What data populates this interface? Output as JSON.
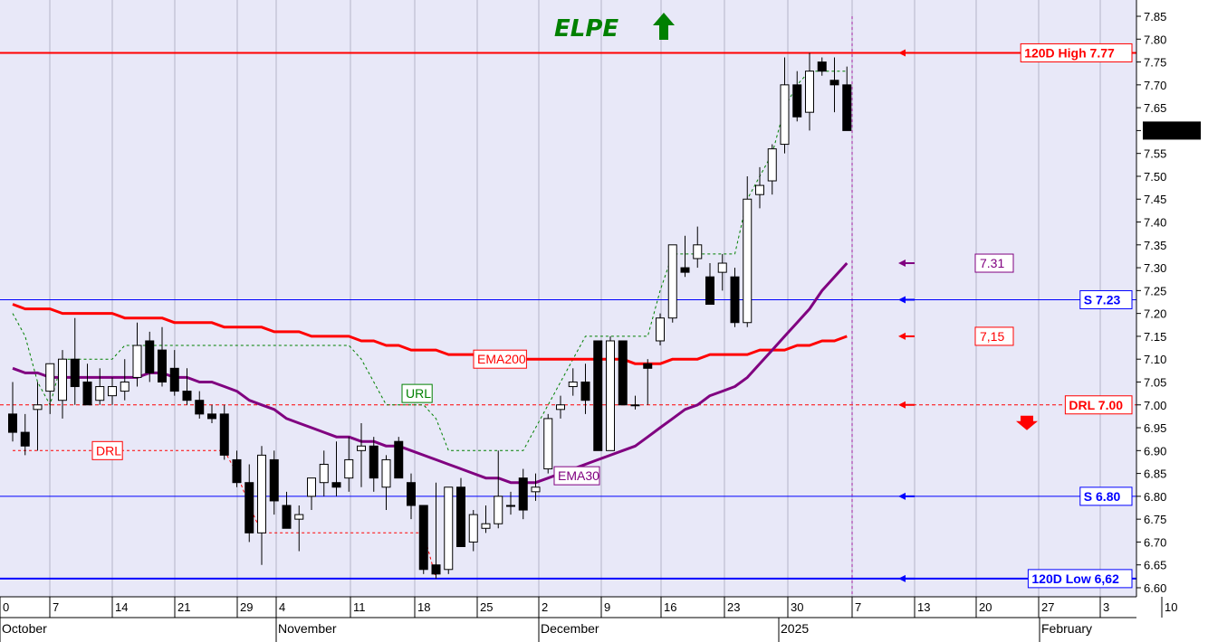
{
  "chart_data": {
    "type": "candlestick",
    "title": "ELPE",
    "trend_arrow": "up",
    "y_axis": {
      "min": 6.6,
      "max": 7.85,
      "ticks": [
        "7.85",
        "7.80",
        "7.75",
        "7.70",
        "7.65",
        "7.60",
        "7.55",
        "7.50",
        "7.45",
        "7.40",
        "7.35",
        "7.30",
        "7.25",
        "7.20",
        "7.15",
        "7.10",
        "7.05",
        "7.00",
        "6.95",
        "6.90",
        "6.85",
        "6.80",
        "6.75",
        "6.70",
        "6.65",
        "6.60"
      ]
    },
    "x_axis": {
      "day_ticks": [
        "0",
        "7",
        "14",
        "21",
        "29",
        "4",
        "11",
        "18",
        "25",
        "2",
        "9",
        "16",
        "23",
        "30",
        "7",
        "13",
        "20",
        "27",
        "3",
        "10"
      ],
      "months": [
        "October",
        "November",
        "December",
        "2025",
        "February"
      ]
    },
    "last_price": "7.60000",
    "levels": [
      {
        "name": "120d-high",
        "label": "120D High 7.77",
        "value": 7.77,
        "color": "#ff0000"
      },
      {
        "name": "support-7-23",
        "label": "S 7.23",
        "value": 7.23,
        "color": "#0000ff"
      },
      {
        "name": "drl",
        "label": "DRL 7.00",
        "value": 7.0,
        "color": "#ff0000"
      },
      {
        "name": "support-6-80",
        "label": "S 6.80",
        "value": 6.8,
        "color": "#0000ff"
      },
      {
        "name": "120d-low",
        "label": "120D Low 6,62",
        "value": 6.62,
        "color": "#0000ff"
      }
    ],
    "annotations": [
      {
        "name": "ema30-projection",
        "label": "7.31",
        "value": 7.31,
        "color": "#800080"
      },
      {
        "name": "ema200-projection",
        "label": "7,15",
        "value": 7.15,
        "color": "#ff0000"
      }
    ],
    "indicator_labels": {
      "ema200": "EMA200",
      "ema30": "EMA30",
      "url": "URL",
      "drl": "DRL"
    },
    "colors": {
      "background": "#e8e8f8",
      "ema200": "#ff0000",
      "ema30": "#800080",
      "url": "#008000",
      "drl": "#ff0000",
      "support": "#0000ff"
    },
    "candles": [
      {
        "o": 6.98,
        "h": 7.05,
        "l": 6.92,
        "c": 6.94
      },
      {
        "o": 6.94,
        "h": 6.98,
        "l": 6.89,
        "c": 6.91
      },
      {
        "o": 6.99,
        "h": 7.05,
        "l": 6.9,
        "c": 7.0
      },
      {
        "o": 7.03,
        "h": 7.09,
        "l": 6.98,
        "c": 7.09
      },
      {
        "o": 7.01,
        "h": 7.12,
        "l": 6.97,
        "c": 7.1
      },
      {
        "o": 7.1,
        "h": 7.19,
        "l": 7.0,
        "c": 7.04
      },
      {
        "o": 7.05,
        "h": 7.09,
        "l": 7.0,
        "c": 7.0
      },
      {
        "o": 7.01,
        "h": 7.08,
        "l": 7.0,
        "c": 7.04
      },
      {
        "o": 7.02,
        "h": 7.06,
        "l": 7.0,
        "c": 7.04
      },
      {
        "o": 7.03,
        "h": 7.1,
        "l": 7.01,
        "c": 7.05
      },
      {
        "o": 7.06,
        "h": 7.18,
        "l": 7.04,
        "c": 7.13
      },
      {
        "o": 7.14,
        "h": 7.16,
        "l": 7.05,
        "c": 7.07
      },
      {
        "o": 7.12,
        "h": 7.17,
        "l": 7.04,
        "c": 7.05
      },
      {
        "o": 7.08,
        "h": 7.12,
        "l": 7.02,
        "c": 7.03
      },
      {
        "o": 7.03,
        "h": 7.08,
        "l": 7.0,
        "c": 7.01
      },
      {
        "o": 7.01,
        "h": 7.03,
        "l": 6.97,
        "c": 6.98
      },
      {
        "o": 6.98,
        "h": 7.0,
        "l": 6.96,
        "c": 6.97
      },
      {
        "o": 6.98,
        "h": 7.0,
        "l": 6.88,
        "c": 6.89
      },
      {
        "o": 6.88,
        "h": 6.9,
        "l": 6.82,
        "c": 6.83
      },
      {
        "o": 6.83,
        "h": 6.87,
        "l": 6.7,
        "c": 6.72
      },
      {
        "o": 6.72,
        "h": 6.91,
        "l": 6.65,
        "c": 6.89
      },
      {
        "o": 6.88,
        "h": 6.9,
        "l": 6.76,
        "c": 6.79
      },
      {
        "o": 6.78,
        "h": 6.81,
        "l": 6.73,
        "c": 6.73
      },
      {
        "o": 6.75,
        "h": 6.78,
        "l": 6.68,
        "c": 6.76
      },
      {
        "o": 6.8,
        "h": 6.84,
        "l": 6.77,
        "c": 6.84
      },
      {
        "o": 6.83,
        "h": 6.9,
        "l": 6.8,
        "c": 6.87
      },
      {
        "o": 6.83,
        "h": 6.92,
        "l": 6.8,
        "c": 6.82
      },
      {
        "o": 6.84,
        "h": 6.93,
        "l": 6.81,
        "c": 6.88
      },
      {
        "o": 6.9,
        "h": 6.96,
        "l": 6.82,
        "c": 6.91
      },
      {
        "o": 6.91,
        "h": 6.93,
        "l": 6.81,
        "c": 6.84
      },
      {
        "o": 6.82,
        "h": 6.89,
        "l": 6.77,
        "c": 6.88
      },
      {
        "o": 6.92,
        "h": 6.93,
        "l": 6.84,
        "c": 6.84
      },
      {
        "o": 6.83,
        "h": 6.85,
        "l": 6.75,
        "c": 6.78
      },
      {
        "o": 6.78,
        "h": 6.78,
        "l": 6.63,
        "c": 6.64
      },
      {
        "o": 6.65,
        "h": 6.83,
        "l": 6.62,
        "c": 6.63
      },
      {
        "o": 6.64,
        "h": 6.82,
        "l": 6.63,
        "c": 6.82
      },
      {
        "o": 6.82,
        "h": 6.84,
        "l": 6.69,
        "c": 6.69
      },
      {
        "o": 6.7,
        "h": 6.77,
        "l": 6.68,
        "c": 6.76
      },
      {
        "o": 6.73,
        "h": 6.78,
        "l": 6.72,
        "c": 6.74
      },
      {
        "o": 6.74,
        "h": 6.9,
        "l": 6.73,
        "c": 6.8
      },
      {
        "o": 6.78,
        "h": 6.81,
        "l": 6.76,
        "c": 6.78
      },
      {
        "o": 6.84,
        "h": 6.86,
        "l": 6.75,
        "c": 6.77
      },
      {
        "o": 6.81,
        "h": 6.85,
        "l": 6.79,
        "c": 6.82
      },
      {
        "o": 6.86,
        "h": 6.98,
        "l": 6.85,
        "c": 6.97
      },
      {
        "o": 6.99,
        "h": 7.02,
        "l": 6.97,
        "c": 7.0
      },
      {
        "o": 7.04,
        "h": 7.08,
        "l": 7.02,
        "c": 7.05
      },
      {
        "o": 7.05,
        "h": 7.09,
        "l": 6.98,
        "c": 7.01
      },
      {
        "o": 7.14,
        "h": 7.14,
        "l": 6.9,
        "c": 6.9
      },
      {
        "o": 6.9,
        "h": 7.15,
        "l": 6.9,
        "c": 7.14
      },
      {
        "o": 7.14,
        "h": 7.14,
        "l": 7.0,
        "c": 7.0
      },
      {
        "o": 7.0,
        "h": 7.02,
        "l": 6.99,
        "c": 7.0
      },
      {
        "o": 7.09,
        "h": 7.1,
        "l": 7.0,
        "c": 7.08
      },
      {
        "o": 7.14,
        "h": 7.2,
        "l": 7.13,
        "c": 7.19
      },
      {
        "o": 7.19,
        "h": 7.35,
        "l": 7.18,
        "c": 7.35
      },
      {
        "o": 7.3,
        "h": 7.37,
        "l": 7.28,
        "c": 7.29
      },
      {
        "o": 7.32,
        "h": 7.39,
        "l": 7.3,
        "c": 7.35
      },
      {
        "o": 7.28,
        "h": 7.31,
        "l": 7.22,
        "c": 7.22
      },
      {
        "o": 7.29,
        "h": 7.33,
        "l": 7.25,
        "c": 7.31
      },
      {
        "o": 7.28,
        "h": 7.3,
        "l": 7.17,
        "c": 7.18
      },
      {
        "o": 7.18,
        "h": 7.5,
        "l": 7.17,
        "c": 7.45
      },
      {
        "o": 7.46,
        "h": 7.52,
        "l": 7.43,
        "c": 7.48
      },
      {
        "o": 7.49,
        "h": 7.57,
        "l": 7.46,
        "c": 7.56
      },
      {
        "o": 7.57,
        "h": 7.76,
        "l": 7.55,
        "c": 7.7
      },
      {
        "o": 7.7,
        "h": 7.73,
        "l": 7.62,
        "c": 7.63
      },
      {
        "o": 7.64,
        "h": 7.77,
        "l": 7.6,
        "c": 7.73
      },
      {
        "o": 7.75,
        "h": 7.76,
        "l": 7.72,
        "c": 7.73
      },
      {
        "o": 7.71,
        "h": 7.76,
        "l": 7.64,
        "c": 7.7
      },
      {
        "o": 7.7,
        "h": 7.74,
        "l": 7.6,
        "c": 7.6
      }
    ],
    "ema200": [
      7.22,
      7.21,
      7.21,
      7.21,
      7.2,
      7.2,
      7.2,
      7.2,
      7.2,
      7.19,
      7.19,
      7.19,
      7.19,
      7.18,
      7.18,
      7.18,
      7.18,
      7.17,
      7.17,
      7.17,
      7.17,
      7.16,
      7.16,
      7.16,
      7.15,
      7.15,
      7.15,
      7.15,
      7.14,
      7.14,
      7.13,
      7.13,
      7.12,
      7.12,
      7.12,
      7.11,
      7.11,
      7.11,
      7.1,
      7.1,
      7.1,
      7.1,
      7.1,
      7.1,
      7.1,
      7.1,
      7.1,
      7.1,
      7.1,
      7.1,
      7.09,
      7.09,
      7.09,
      7.1,
      7.1,
      7.1,
      7.11,
      7.11,
      7.11,
      7.11,
      7.12,
      7.12,
      7.12,
      7.13,
      7.13,
      7.14,
      7.14,
      7.15
    ],
    "ema30": [
      7.08,
      7.07,
      7.07,
      7.06,
      7.06,
      7.06,
      7.06,
      7.06,
      7.06,
      7.06,
      7.06,
      7.07,
      7.07,
      7.06,
      7.06,
      7.05,
      7.05,
      7.04,
      7.03,
      7.01,
      7.0,
      6.99,
      6.97,
      6.96,
      6.95,
      6.94,
      6.93,
      6.93,
      6.92,
      6.92,
      6.91,
      6.91,
      6.9,
      6.89,
      6.88,
      6.87,
      6.86,
      6.85,
      6.84,
      6.84,
      6.83,
      6.83,
      6.83,
      6.84,
      6.85,
      6.86,
      6.87,
      6.88,
      6.89,
      6.9,
      6.91,
      6.93,
      6.95,
      6.97,
      6.99,
      7.0,
      7.02,
      7.03,
      7.04,
      7.06,
      7.09,
      7.12,
      7.15,
      7.18,
      7.21,
      7.25,
      7.28,
      7.31
    ],
    "url": [
      7.2,
      7.15,
      7.05,
      7.0,
      7.1,
      7.1,
      7.1,
      7.1,
      7.1,
      7.13,
      7.13,
      7.13,
      7.13,
      7.13,
      7.13,
      7.13,
      7.13,
      7.13,
      7.13,
      7.13,
      7.13,
      7.13,
      7.13,
      7.13,
      7.13,
      7.13,
      7.13,
      7.13,
      7.1,
      7.05,
      7.0,
      7.0,
      7.0,
      7.0,
      6.97,
      6.9,
      6.9,
      6.9,
      6.9,
      6.9,
      6.9,
      6.9,
      6.95,
      7.0,
      7.05,
      7.1,
      7.15,
      7.15,
      7.15,
      7.15,
      7.15,
      7.15,
      7.25,
      7.33,
      7.33,
      7.33,
      7.33,
      7.33,
      7.33,
      7.45,
      7.5,
      7.55,
      7.65,
      7.7,
      7.73,
      7.73,
      7.73,
      7.73
    ],
    "drl": [
      6.9,
      6.9,
      6.9,
      6.9,
      6.9,
      6.9,
      6.9,
      6.9,
      6.9,
      6.9,
      6.9,
      6.9,
      6.9,
      6.9,
      6.9,
      6.9,
      6.9,
      6.9,
      6.85,
      6.78,
      6.72,
      6.72,
      6.72,
      6.72,
      6.72,
      6.72,
      6.72,
      6.72,
      6.72,
      6.72,
      6.72,
      6.72,
      6.72,
      6.72,
      6.62
    ]
  }
}
